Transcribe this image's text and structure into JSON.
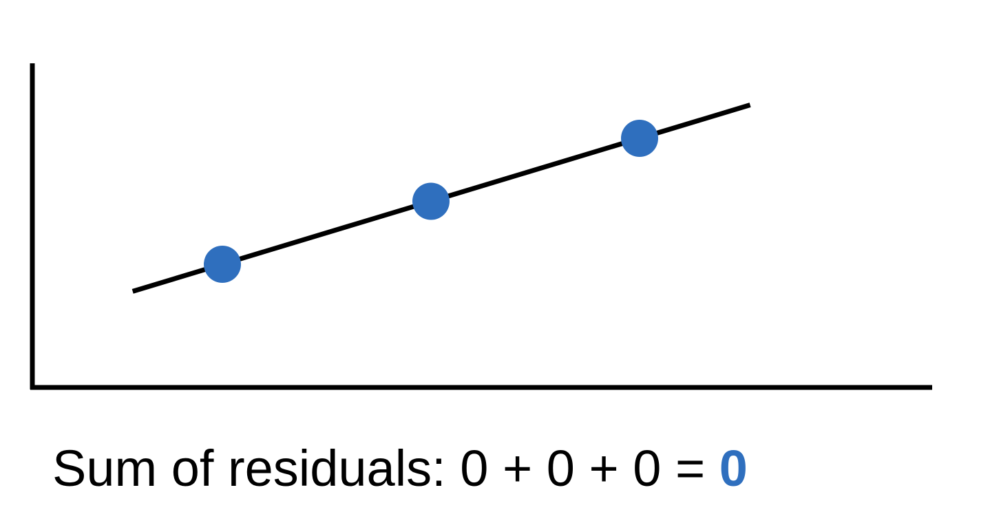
{
  "caption": {
    "prefix": "Sum of residuals: 0 + 0 + 0 = ",
    "result": "0"
  },
  "colors": {
    "axis": "#000000",
    "line": "#000000",
    "points": "#2f6fbe",
    "result": "#2f6fbe"
  },
  "chart_data": {
    "type": "scatter",
    "title": "",
    "xlabel": "",
    "ylabel": "",
    "points": [
      {
        "x": 1,
        "y": 1,
        "residual": 0
      },
      {
        "x": 2,
        "y": 2,
        "residual": 0
      },
      {
        "x": 3,
        "y": 3,
        "residual": 0
      }
    ],
    "fit_line": {
      "x_start": 0.57,
      "x_end": 3.53,
      "on_points": true
    },
    "grid": false
  }
}
